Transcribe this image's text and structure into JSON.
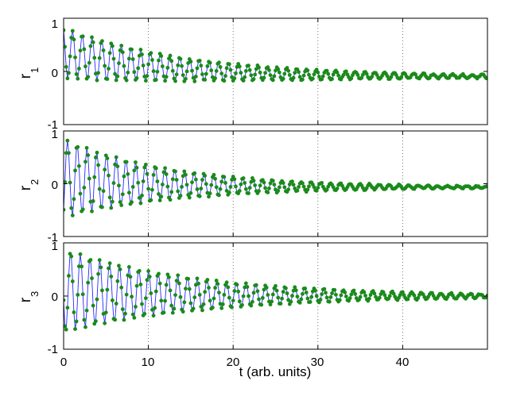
{
  "chart_data": {
    "type": "line",
    "xlabel": "t (arb. units)",
    "xlim": [
      0,
      50
    ],
    "x_ticks": [
      0,
      10,
      20,
      30,
      40
    ],
    "y_ticks": [
      -1,
      0,
      1
    ],
    "grid": "vertical-dotted",
    "line_color": "#2828ff",
    "marker_color": "#1a8a1a",
    "panels": [
      {
        "ylabel_base": "r",
        "ylabel_sub": "1",
        "ylim": [
          -1,
          1
        ],
        "model": {
          "offset": 0.35,
          "amplitude": 0.48,
          "decay": 0.055,
          "period": 1.15,
          "phase": 0.5,
          "drift_end": -0.1
        }
      },
      {
        "ylabel_base": "r",
        "ylabel_sub": "2",
        "ylim": [
          -1,
          1
        ],
        "model": {
          "offset": 0.1,
          "amplitude": 0.75,
          "decay": 0.075,
          "period": 1.15,
          "phase": 3.8,
          "drift_end": -0.07
        }
      },
      {
        "ylabel_base": "r",
        "ylabel_sub": "3",
        "ylim": [
          -1,
          1
        ],
        "model": {
          "offset": 0.1,
          "amplitude": 0.78,
          "decay": 0.06,
          "period": 1.15,
          "phase": 1.8,
          "drift_end": 0.0
        }
      }
    ]
  }
}
